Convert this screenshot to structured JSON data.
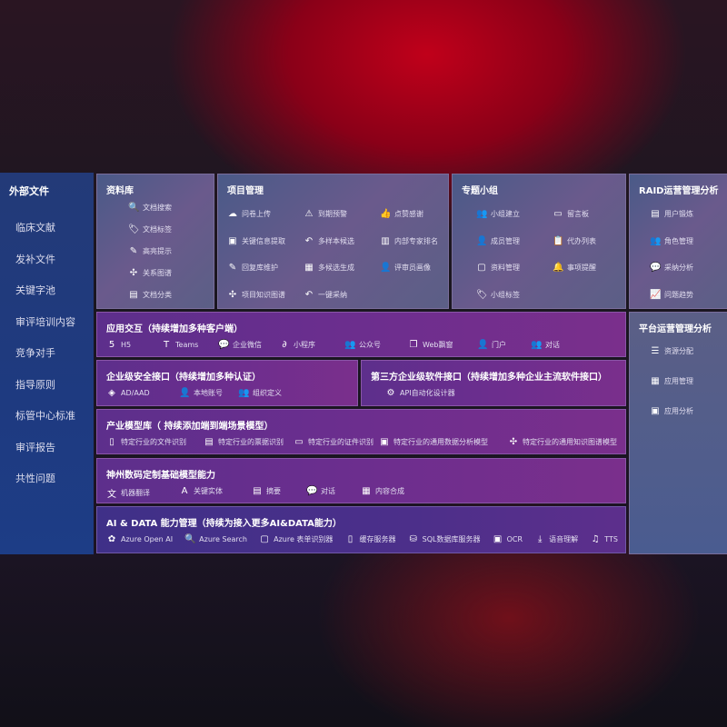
{
  "sidebar": {
    "title": "外部文件",
    "items": [
      "临床文献",
      "发补文件",
      "关键字池",
      "审评培训内容",
      "竞争对手",
      "指导原则",
      "标管中心标准",
      "审评报告",
      "共性问题"
    ]
  },
  "library": {
    "title": "资料库",
    "items": [
      {
        "icon": "document-search-icon",
        "g": "🔍",
        "label": "文档搜索"
      },
      {
        "icon": "tag-icon",
        "g": "🏷",
        "label": "文档标签"
      },
      {
        "icon": "highlight-pen-icon",
        "g": "✎",
        "label": "高亮提示"
      },
      {
        "icon": "graph-network-icon",
        "g": "✣",
        "label": "关系图谱"
      },
      {
        "icon": "document-category-icon",
        "g": "▤",
        "label": "文档分类"
      }
    ]
  },
  "project": {
    "title": "项目管理",
    "items": [
      {
        "icon": "cloud-upload-icon",
        "g": "☁",
        "label": "问卷上传"
      },
      {
        "icon": "alarm-icon",
        "g": "⚠",
        "label": "到期预警"
      },
      {
        "icon": "thumbs-up-icon",
        "g": "👍",
        "label": "点赞感谢"
      },
      {
        "icon": "window-icon",
        "g": "▣",
        "label": "关键信息提取"
      },
      {
        "icon": "reply-icon",
        "g": "↶",
        "label": "多样本候选"
      },
      {
        "icon": "ranking-icon",
        "g": "▥",
        "label": "内部专家排名"
      },
      {
        "icon": "edit-icon",
        "g": "✎",
        "label": "回复库维护"
      },
      {
        "icon": "puzzle-icon",
        "g": "▦",
        "label": "多候选生成"
      },
      {
        "icon": "user-icon",
        "g": "👤",
        "label": "评审员画像"
      },
      {
        "icon": "knowledge-graph-icon",
        "g": "✣",
        "label": "项目知识图谱"
      },
      {
        "icon": "reply-icon",
        "g": "↶",
        "label": "一键采纳"
      }
    ]
  },
  "group": {
    "title": "专题小组",
    "items": [
      {
        "icon": "group-icon",
        "g": "👥",
        "label": "小组建立"
      },
      {
        "icon": "bbs-icon",
        "g": "▭",
        "label": "留言板"
      },
      {
        "icon": "member-icon",
        "g": "👤",
        "label": "成员管理"
      },
      {
        "icon": "clipboard-icon",
        "g": "📋",
        "label": "代办列表"
      },
      {
        "icon": "folder-icon",
        "g": "▢",
        "label": "资料管理"
      },
      {
        "icon": "bell-icon",
        "g": "🔔",
        "label": "事项提醒"
      },
      {
        "icon": "tag-icon",
        "g": "🏷",
        "label": "小组标签"
      }
    ]
  },
  "raid": {
    "title": "RAID运营管理分析",
    "items": [
      {
        "icon": "id-card-icon",
        "g": "▤",
        "label": "用户锻炼"
      },
      {
        "icon": "users-icon",
        "g": "👥",
        "label": "角色管理"
      },
      {
        "icon": "qa-chat-icon",
        "g": "💬",
        "label": "采纳分析"
      },
      {
        "icon": "trend-chart-icon",
        "g": "📈",
        "label": "问题趋势"
      }
    ]
  },
  "platform": {
    "title": "平台运营管理分析",
    "items": [
      {
        "icon": "list-icon",
        "g": "☰",
        "label": "资源分配"
      },
      {
        "icon": "apps-icon",
        "g": "▦",
        "label": "应用管理"
      },
      {
        "icon": "analysis-icon",
        "g": "▣",
        "label": "应用分析"
      }
    ]
  },
  "bars": [
    {
      "title": "应用交互（持续增加多种客户端）",
      "items": [
        {
          "icon": "html5-icon",
          "g": "5",
          "label": "H5"
        },
        {
          "icon": "teams-icon",
          "g": "T",
          "label": "Teams"
        },
        {
          "icon": "wechat-work-icon",
          "g": "💬",
          "label": "企业微信"
        },
        {
          "icon": "mini-program-icon",
          "g": "∂",
          "label": "小程序"
        },
        {
          "icon": "official-account-icon",
          "g": "👥",
          "label": "公众号"
        },
        {
          "icon": "web-window-icon",
          "g": "❐",
          "label": "Web飘窗"
        },
        {
          "icon": "portal-icon",
          "g": "👤",
          "label": "门户"
        },
        {
          "icon": "dialogue-icon",
          "g": "👥",
          "label": "对话"
        }
      ]
    },
    {
      "title": "企业级安全接口（持续增加多种认证）",
      "items": [
        {
          "icon": "ad-icon",
          "g": "◈",
          "label": "AD/AAD"
        },
        {
          "icon": "local-account-icon",
          "g": "👤",
          "label": "本地账号"
        },
        {
          "icon": "organization-icon",
          "g": "👥",
          "label": "组织定义"
        }
      ]
    },
    {
      "title": "第三方企业级软件接口（持续增加多种企业主流软件接口）",
      "items": [
        {
          "icon": "api-gear-icon",
          "g": "⚙",
          "label": "API自动化设计器"
        }
      ]
    },
    {
      "title": "产业模型库（ 持续添加端到端场景模型）",
      "items": [
        {
          "icon": "file-icon",
          "g": "▯",
          "label": "特定行业的文件识别"
        },
        {
          "icon": "receipt-icon",
          "g": "▤",
          "label": "特定行业的票据识别"
        },
        {
          "icon": "id-card-icon",
          "g": "▭",
          "label": "特定行业的证件识别"
        },
        {
          "icon": "data-analysis-icon",
          "g": "▣",
          "label": "特定行业的通用数据分析模型"
        },
        {
          "icon": "knowledge-graph-icon",
          "g": "✣",
          "label": "特定行业的通用知识图谱模型"
        }
      ]
    },
    {
      "title": "神州数码定制基础模型能力",
      "items": [
        {
          "icon": "translate-icon",
          "g": "文",
          "label": "机器翻译"
        },
        {
          "icon": "entity-icon",
          "g": "A",
          "label": "关键实体"
        },
        {
          "icon": "summary-icon",
          "g": "▤",
          "label": "摘要"
        },
        {
          "icon": "chat-icon",
          "g": "💬",
          "label": "对话"
        },
        {
          "icon": "content-synthesis-icon",
          "g": "▦",
          "label": "内容合成"
        }
      ]
    },
    {
      "title": "AI & DATA 能力管理（持续为接入更多AI&DATA能力）",
      "items": [
        {
          "icon": "openai-icon",
          "g": "✿",
          "label": "Azure Open AI"
        },
        {
          "icon": "search-doc-icon",
          "g": "🔍",
          "label": "Azure Search"
        },
        {
          "icon": "form-recognizer-icon",
          "g": "▢",
          "label": "Azure 表单识别器"
        },
        {
          "icon": "cache-server-icon",
          "g": "▯",
          "label": "缓存服务器"
        },
        {
          "icon": "database-icon",
          "g": "⛁",
          "label": "SQL数据库服务器"
        },
        {
          "icon": "ocr-icon",
          "g": "▣",
          "label": "OCR"
        },
        {
          "icon": "speech-icon",
          "g": "⤓",
          "label": "语音理解"
        },
        {
          "icon": "tts-icon",
          "g": "♫",
          "label": "TTS"
        }
      ]
    }
  ],
  "colors": {
    "sidebar": "#1e3a80",
    "panel_gray": "#5b5f86",
    "bar_purple": "#6c2e8e",
    "background_red": "#c0001a"
  }
}
